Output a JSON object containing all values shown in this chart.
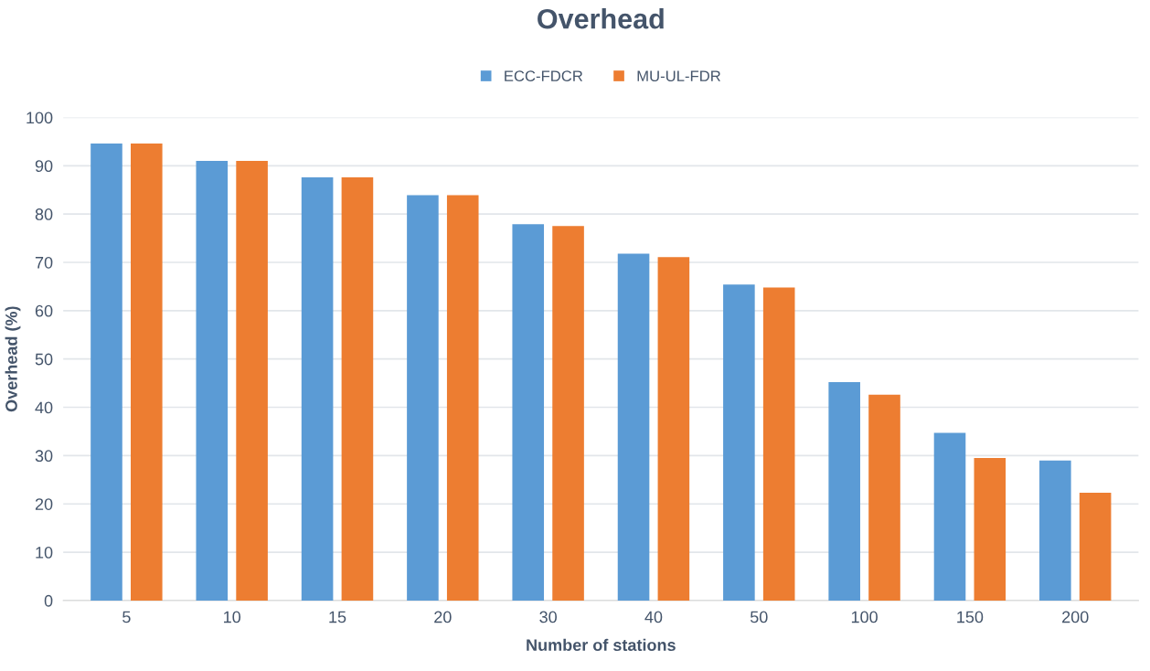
{
  "chart_data": {
    "type": "bar",
    "title": "Overhead",
    "xlabel": "Number of stations",
    "ylabel": "Overhead (%)",
    "categories": [
      "5",
      "10",
      "15",
      "20",
      "30",
      "40",
      "50",
      "100",
      "150",
      "200"
    ],
    "series": [
      {
        "name": "ECC-FDCR",
        "color": "#5b9bd5",
        "values": [
          94.6,
          91,
          87.6,
          83.9,
          77.9,
          71.8,
          65.4,
          45.2,
          34.7,
          29.0
        ]
      },
      {
        "name": "MU-UL-FDR",
        "color": "#ed7d31",
        "values": [
          94.6,
          91,
          87.6,
          83.9,
          77.5,
          71.1,
          64.8,
          42.6,
          29.5,
          22.3
        ]
      }
    ],
    "ylim": [
      0,
      100
    ],
    "yticks": [
      0,
      10,
      20,
      30,
      40,
      50,
      60,
      70,
      80,
      90,
      100
    ],
    "grid": "y",
    "legend": "top"
  }
}
